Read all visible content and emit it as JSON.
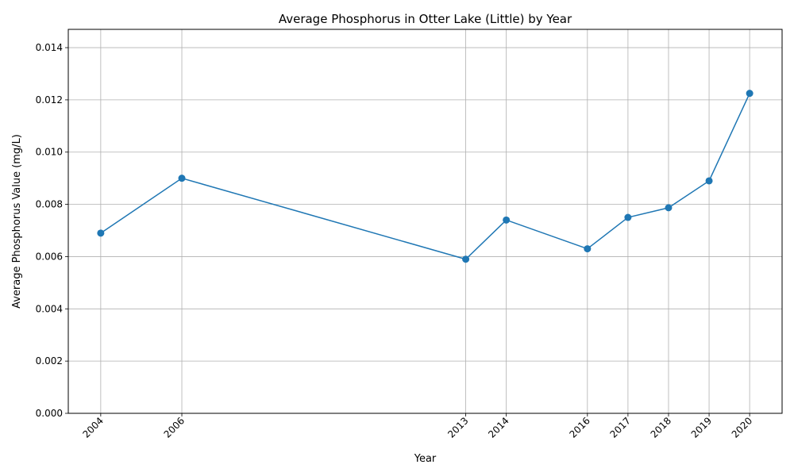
{
  "chart_data": {
    "type": "line",
    "title": "Average Phosphorus in Otter Lake (Little) by Year",
    "xlabel": "Year",
    "ylabel": "Average Phosphorus Value (mg/L)",
    "x": [
      2004,
      2006,
      2013,
      2014,
      2016,
      2017,
      2018,
      2019,
      2020
    ],
    "x_tick_labels": [
      "2004",
      "2006",
      "2013",
      "2014",
      "2016",
      "2017",
      "2018",
      "2019",
      "2020"
    ],
    "series": [
      {
        "values": [
          0.0069,
          0.009,
          0.0059,
          0.0074,
          0.0063,
          0.0075,
          0.00787,
          0.0089,
          0.01225
        ],
        "color": "#1f77b4",
        "marker": "circle"
      }
    ],
    "xlim": [
      2003.2,
      2020.8
    ],
    "ylim": [
      0,
      0.0147
    ],
    "y_ticks": [
      0,
      0.002,
      0.004,
      0.006,
      0.008,
      0.01,
      0.012,
      0.014
    ],
    "y_tick_labels": [
      "0.000",
      "0.002",
      "0.004",
      "0.006",
      "0.008",
      "0.010",
      "0.012",
      "0.014"
    ],
    "grid": true,
    "legend": "none"
  }
}
